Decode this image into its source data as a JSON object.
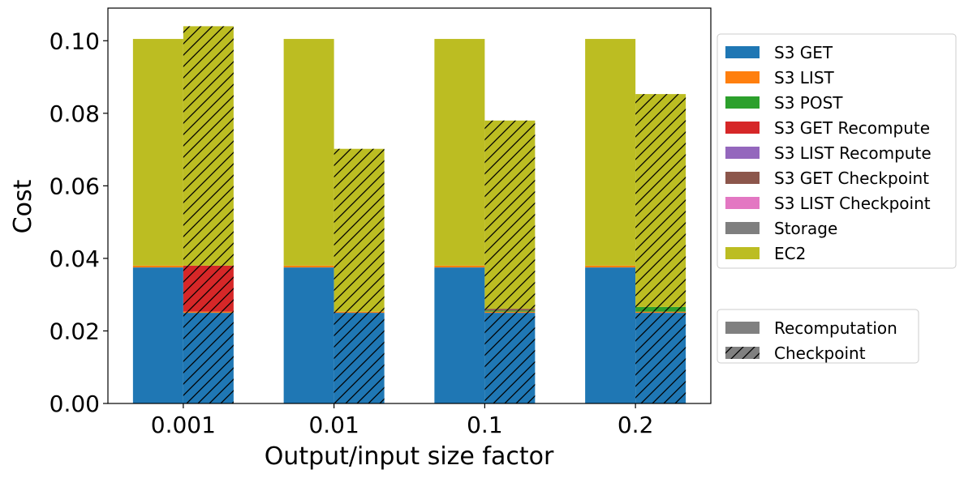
{
  "chart_data": {
    "type": "bar",
    "xlabel": "Output/input size factor",
    "ylabel": "Cost",
    "ylim": [
      0,
      0.109
    ],
    "yticks": [
      "0.00",
      "0.02",
      "0.04",
      "0.06",
      "0.08",
      "0.10"
    ],
    "categories": [
      "0.001",
      "0.01",
      "0.1",
      "0.2"
    ],
    "stack_components": [
      {
        "name": "S3 GET",
        "color": "#1f77b4"
      },
      {
        "name": "S3 LIST",
        "color": "#ff7f0e"
      },
      {
        "name": "S3 POST",
        "color": "#2ca02c"
      },
      {
        "name": "S3 GET Recompute",
        "color": "#d62728"
      },
      {
        "name": "S3 LIST Recompute",
        "color": "#9467bd"
      },
      {
        "name": "S3 GET Checkpoint",
        "color": "#8c564b"
      },
      {
        "name": "S3 LIST Checkpoint",
        "color": "#e377c2"
      },
      {
        "name": "Storage",
        "color": "#7f7f7f"
      },
      {
        "name": "EC2",
        "color": "#bcbd22"
      }
    ],
    "series": [
      {
        "name": "Recomputation",
        "hatch": false,
        "values": {
          "S3 GET": [
            0.0375,
            0.0375,
            0.0375,
            0.0375
          ],
          "S3 LIST": [
            0.0005,
            0.0005,
            0.0005,
            0.0005
          ],
          "S3 POST": [
            0,
            0,
            0,
            0
          ],
          "S3 GET Recompute": [
            0,
            0,
            0,
            0
          ],
          "S3 LIST Recompute": [
            0,
            0,
            0,
            0
          ],
          "S3 GET Checkpoint": [
            0,
            0,
            0,
            0
          ],
          "S3 LIST Checkpoint": [
            0,
            0,
            0,
            0
          ],
          "Storage": [
            0,
            0,
            0,
            0
          ],
          "EC2": [
            0.0625,
            0.0625,
            0.0625,
            0.0625
          ]
        }
      },
      {
        "name": "Checkpoint",
        "hatch": true,
        "values": {
          "S3 GET": [
            0.025,
            0.025,
            0.025,
            0.025
          ],
          "S3 LIST": [
            0.0003,
            0.0003,
            0.0003,
            0.0003
          ],
          "S3 POST": [
            0,
            0,
            0.0003,
            0.0013
          ],
          "S3 GET Recompute": [
            0.0127,
            0,
            0,
            0
          ],
          "S3 LIST Recompute": [
            0,
            0,
            0,
            0
          ],
          "S3 GET Checkpoint": [
            0,
            0,
            0.0005,
            0
          ],
          "S3 LIST Checkpoint": [
            0,
            0,
            0,
            0
          ],
          "Storage": [
            0,
            0,
            0,
            0
          ],
          "EC2": [
            0.066,
            0.0449,
            0.0519,
            0.0587
          ]
        }
      }
    ],
    "legend": {
      "placement": "right",
      "entries": [
        "S3 GET",
        "S3 LIST",
        "S3 POST",
        "S3 GET Recompute",
        "S3 LIST Recompute",
        "S3 GET Checkpoint",
        "S3 LIST Checkpoint",
        "Storage",
        "EC2"
      ],
      "series_entries": [
        "Recomputation",
        "Checkpoint"
      ],
      "series_color": "#808080"
    },
    "grid": false
  }
}
